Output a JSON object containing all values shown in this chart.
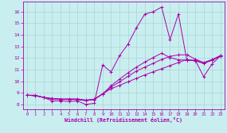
{
  "xlabel": "Windchill (Refroidissement éolien,°C)",
  "bg_color": "#c8eef0",
  "line_color": "#aa00aa",
  "grid_color": "#aacccc",
  "x_ticks": [
    0,
    1,
    2,
    3,
    4,
    5,
    6,
    7,
    8,
    9,
    10,
    11,
    12,
    13,
    14,
    15,
    16,
    17,
    18,
    19,
    20,
    21,
    22,
    23
  ],
  "y_ticks": [
    8,
    9,
    10,
    11,
    12,
    13,
    14,
    15,
    16
  ],
  "ylim": [
    7.6,
    16.9
  ],
  "xlim": [
    -0.5,
    23.5
  ],
  "line_main": [
    8.8,
    8.8,
    8.6,
    8.3,
    8.3,
    8.25,
    8.3,
    8.0,
    8.1,
    11.4,
    10.8,
    12.2,
    13.2,
    14.6,
    15.8,
    16.0,
    16.4,
    13.6,
    15.8,
    11.8,
    11.8,
    10.4,
    11.5,
    12.2
  ],
  "line_ref1": [
    8.8,
    8.75,
    8.62,
    8.52,
    8.48,
    8.48,
    8.48,
    8.38,
    8.46,
    8.92,
    9.35,
    9.65,
    9.95,
    10.25,
    10.55,
    10.82,
    11.08,
    11.35,
    11.62,
    11.88,
    11.75,
    11.55,
    11.82,
    12.15
  ],
  "line_ref2": [
    8.8,
    8.75,
    8.6,
    8.48,
    8.43,
    8.43,
    8.43,
    8.33,
    8.43,
    8.9,
    9.5,
    9.95,
    10.42,
    10.88,
    11.22,
    11.55,
    11.88,
    12.15,
    12.28,
    12.28,
    11.92,
    11.62,
    11.88,
    12.22
  ],
  "line_ref3": [
    8.8,
    8.75,
    8.6,
    8.48,
    8.43,
    8.43,
    8.43,
    8.33,
    8.43,
    8.9,
    9.62,
    10.18,
    10.72,
    11.22,
    11.65,
    12.05,
    12.42,
    12.05,
    11.85,
    11.82,
    11.82,
    11.55,
    11.82,
    12.22
  ]
}
